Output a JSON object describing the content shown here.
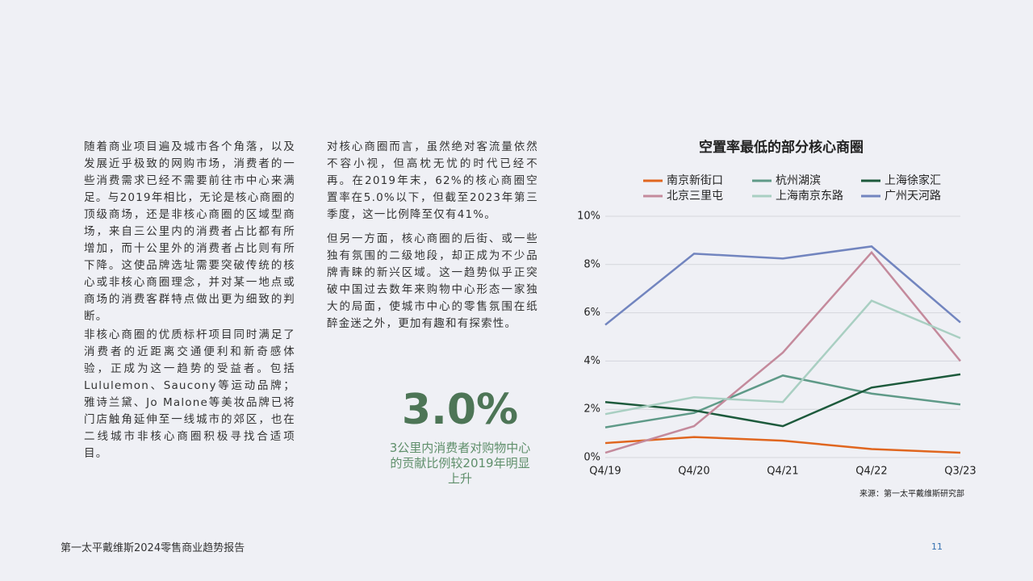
{
  "paragraphs": [
    "随着商业项目遍及城市各个角落，以及发展近乎极致的网购市场，消费者的一些消费需求已经不需要前往市中心来满足。与2019年相比，无论是核心商圈的顶级商场，还是非核心商圈的区域型商场，来自三公里内的消费者占比都有所增加，而十公里外的消费者占比则有所下降。这使品牌选址需要突破传统的核心或非核心商圈理念，并对某一地点或商场的消费客群特点做出更为细致的判断。",
    "非核心商圈的优质标杆项目同时满足了消费者的近距离交通便利和新奇感体验，正成为这一趋势的受益者。包括Lululemon、Saucony等运动品牌；雅诗兰黛、Jo Malone等美妆品牌已将门店触角延伸至一线城市的郊区，也在二线城市非核心商圈积极寻找合适项目。",
    "对核心商圈而言，虽然绝对客流量依然不容小视，但高枕无忧的时代已经不再。在2019年末，62%的核心商圈空置率在5.0%以下，但截至2023年第三季度，这一比例降至仅有41%。",
    "但另一方面，核心商圈的后街、或一些独有氛围的二级地段，却正成为不少品牌青睐的新兴区域。这一趋势似乎正突破中国过去数年来购物中心形态一家独大的局面，使城市中心的零售氛围在纸醉金迷之外，更加有趣和有探索性。"
  ],
  "stat": {
    "value": "3.0%",
    "caption": "3公里内消费者对购物中心的贡献比例较2019年明显上升"
  },
  "chart_data": {
    "type": "line",
    "title": "空置率最低的部分核心商圈",
    "categories": [
      "Q4/19",
      "Q4/20",
      "Q4/21",
      "Q4/22",
      "Q3/23"
    ],
    "series": [
      {
        "name": "南京新街口",
        "color": "#e0661f",
        "values": [
          0.6,
          0.85,
          0.7,
          0.35,
          0.2
        ]
      },
      {
        "name": "杭州湖滨",
        "color": "#5f9a88",
        "values": [
          1.25,
          1.85,
          3.4,
          2.65,
          2.2
        ]
      },
      {
        "name": "上海徐家汇",
        "color": "#1d5a3c",
        "values": [
          2.3,
          1.95,
          1.3,
          2.9,
          3.45
        ]
      },
      {
        "name": "北京三里屯",
        "color": "#c48a9c",
        "values": [
          0.2,
          1.3,
          4.35,
          8.5,
          4.0
        ]
      },
      {
        "name": "上海南京东路",
        "color": "#a9cfc2",
        "values": [
          1.8,
          2.5,
          2.3,
          6.5,
          4.95
        ]
      },
      {
        "name": "广州天河路",
        "color": "#7285bf",
        "values": [
          5.5,
          8.45,
          8.25,
          8.75,
          5.6
        ]
      }
    ],
    "ylim": [
      0,
      10
    ],
    "yticks": [
      {
        "value": 0,
        "label": "0%"
      },
      {
        "value": 2,
        "label": "2%"
      },
      {
        "value": 4,
        "label": "4%"
      },
      {
        "value": 6,
        "label": "6%"
      },
      {
        "value": 8,
        "label": "8%"
      },
      {
        "value": 10,
        "label": "10%"
      }
    ],
    "grid": true,
    "source": "来源：第一太平戴维斯研究部"
  },
  "footer": {
    "title": "第一太平戴维斯2024零售商业趋势报告",
    "page": "11"
  }
}
